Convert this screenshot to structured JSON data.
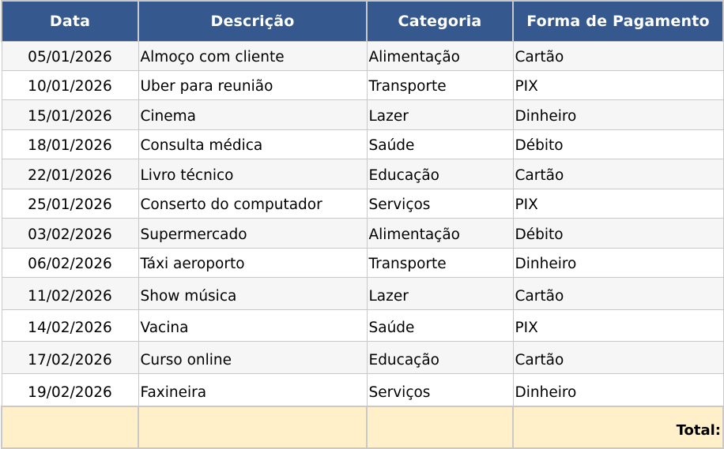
{
  "headers": {
    "date": "Data",
    "description": "Descrição",
    "category": "Categoria",
    "payment": "Forma de Pagamento"
  },
  "rows": [
    {
      "date": "05/01/2026",
      "description": "Almoço com cliente",
      "category": "Alimentação",
      "payment": "Cartão"
    },
    {
      "date": "10/01/2026",
      "description": "Uber para reunião",
      "category": "Transporte",
      "payment": "PIX"
    },
    {
      "date": "15/01/2026",
      "description": "Cinema",
      "category": "Lazer",
      "payment": "Dinheiro"
    },
    {
      "date": "18/01/2026",
      "description": "Consulta médica",
      "category": "Saúde",
      "payment": "Débito"
    },
    {
      "date": "22/01/2026",
      "description": "Livro técnico",
      "category": "Educação",
      "payment": "Cartão"
    },
    {
      "date": "25/01/2026",
      "description": "Conserto do computador",
      "category": "Serviços",
      "payment": "PIX"
    },
    {
      "date": "03/02/2026",
      "description": "Supermercado",
      "category": "Alimentação",
      "payment": "Débito"
    },
    {
      "date": "06/02/2026",
      "description": "Táxi aeroporto",
      "category": "Transporte",
      "payment": "Dinheiro"
    },
    {
      "date": "11/02/2026",
      "description": "Show música",
      "category": "Lazer",
      "payment": "Cartão"
    },
    {
      "date": "14/02/2026",
      "description": "Vacina",
      "category": "Saúde",
      "payment": "PIX"
    },
    {
      "date": "17/02/2026",
      "description": "Curso online",
      "category": "Educação",
      "payment": "Cartão"
    },
    {
      "date": "19/02/2026",
      "description": "Faxineira",
      "category": "Serviços",
      "payment": "Dinheiro"
    }
  ],
  "total_label": "Total:",
  "colors": {
    "header_bg": "#35598f",
    "header_text": "#ffffff",
    "row_alt_bg": "#f6f6f6",
    "total_bg": "#fff0c9",
    "grid": "#c9c9c9"
  }
}
